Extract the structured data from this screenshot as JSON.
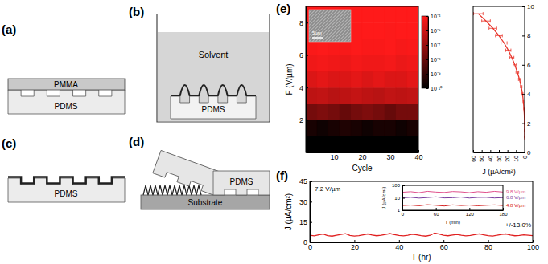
{
  "diagrams": {
    "a": {
      "letter": "(a)",
      "labels": [
        "PMMA",
        "PDMS"
      ]
    },
    "b": {
      "letter": "(b)",
      "labels": [
        "Solvent",
        "PDMS"
      ]
    },
    "c": {
      "letter": "(c)",
      "labels": [
        "PDMS"
      ]
    },
    "d": {
      "letter": "(d)",
      "labels": [
        "PDMS",
        "Substrate"
      ]
    }
  },
  "panel_labels": {
    "e": "(e)",
    "f": "(f)"
  },
  "chart_data": [
    {
      "type": "heatmap",
      "x_label": "Cycle",
      "y_label": "F (V/µm)",
      "x_bins": [
        0,
        4,
        8,
        12,
        16,
        20,
        24,
        28,
        32,
        36,
        40
      ],
      "y_bins": [
        0,
        1,
        2,
        3,
        4,
        5,
        6,
        7,
        8,
        9
      ],
      "cells": [
        [
          1e-10,
          1e-10,
          1e-10,
          1e-10,
          1e-10,
          1e-10,
          1e-10,
          1e-10,
          1e-10,
          1e-10
        ],
        [
          3e-10,
          2e-10,
          3e-10,
          4e-10,
          3e-10,
          2e-10,
          3e-10,
          3e-10,
          2e-10,
          3e-10
        ],
        [
          2e-08,
          3e-08,
          2e-08,
          1e-08,
          2e-08,
          3e-08,
          2e-08,
          1e-08,
          2e-08,
          2e-08
        ],
        [
          5e-07,
          6e-07,
          4e-07,
          5e-07,
          7e-07,
          5e-07,
          4e-07,
          6e-07,
          5e-07,
          6e-07
        ],
        [
          2e-06,
          3e-06,
          2e-06,
          2e-06,
          3e-06,
          2e-06,
          3e-06,
          2e-06,
          2e-06,
          3e-06
        ],
        [
          5e-06,
          6e-06,
          5e-06,
          4e-06,
          6e-06,
          5e-06,
          5e-06,
          6e-06,
          4e-06,
          5e-06
        ],
        [
          8e-06,
          9e-06,
          8e-06,
          7e-06,
          9e-06,
          8e-06,
          8e-06,
          9e-06,
          7e-06,
          8e-06
        ],
        [
          1e-05,
          9e-06,
          1e-05,
          1e-05,
          9e-06,
          1e-05,
          1e-05,
          9e-06,
          1e-05,
          1e-05
        ],
        [
          1e-05,
          1e-05,
          1e-05,
          1e-05,
          1e-05,
          1e-05,
          1e-05,
          1e-05,
          1e-05,
          1e-05
        ]
      ],
      "xlim": [
        0,
        40
      ],
      "ylim": [
        0,
        9
      ],
      "xticks": [
        10,
        20,
        30,
        40
      ],
      "yticks": [
        2,
        4,
        6,
        8
      ],
      "colorbar": {
        "range": [
          1e-10,
          1e-05
        ],
        "log": true,
        "ticks": [
          {
            "value": 1e-10,
            "label": "10⁻¹⁰"
          },
          {
            "value": 1e-09,
            "label": "10⁻⁹"
          },
          {
            "value": 1e-08,
            "label": "10⁻⁸"
          },
          {
            "value": 1e-07,
            "label": "10⁻⁷"
          },
          {
            "value": 1e-06,
            "label": "10⁻⁶"
          },
          {
            "value": 1e-05,
            "label": "10⁻⁵"
          }
        ]
      },
      "annotations": [
        "5µm"
      ]
    },
    {
      "type": "line",
      "x_label": "J (µA/cm²)",
      "x": [
        0,
        0,
        0.1,
        0.3,
        0.8,
        1.5,
        2.5,
        4,
        6,
        8.5,
        11.5,
        15,
        19,
        24,
        30,
        37,
        45,
        54
      ],
      "values": [
        1,
        1.5,
        2,
        2.5,
        3,
        3.5,
        4,
        4.5,
        5,
        5.5,
        6,
        6.5,
        7,
        7.5,
        8,
        8.5,
        9,
        9.5
      ],
      "x_errors": [
        0,
        0,
        0.05,
        0.1,
        0.2,
        0.4,
        0.6,
        0.9,
        1.2,
        1.6,
        2,
        2.5,
        3,
        3.5,
        4,
        4.5,
        5,
        5.5
      ],
      "color": "#e8342a",
      "xlim": [
        60,
        0
      ],
      "ylim": [
        0,
        10
      ],
      "xticks": [
        60,
        50,
        40,
        30,
        20,
        10,
        0
      ],
      "yticks": [
        0,
        2,
        4,
        6,
        8,
        10
      ]
    },
    {
      "type": "line",
      "x_label": "T (hr)",
      "y_label": "J (µA/cm²)",
      "x": [
        0,
        2,
        4,
        6,
        8,
        10,
        12,
        14,
        16,
        18,
        20,
        22,
        24,
        26,
        28,
        30,
        32,
        34,
        36,
        38,
        40,
        42,
        44,
        46,
        48,
        50,
        52,
        54,
        56,
        58,
        60,
        62,
        64,
        66,
        68,
        70,
        72,
        74,
        76,
        78,
        80,
        82,
        84,
        86,
        88,
        90,
        92,
        94,
        96,
        98,
        100
      ],
      "series": [
        {
          "name": "7.2 V/µm",
          "color": "#e02020",
          "values": [
            5.2,
            4.8,
            5.5,
            6.1,
            5.0,
            4.6,
            5.3,
            5.9,
            6.4,
            5.1,
            4.7,
            5.0,
            5.6,
            6.2,
            5.4,
            4.9,
            5.2,
            5.8,
            6.5,
            5.7,
            5.1,
            4.8,
            5.3,
            6.0,
            5.5,
            5.0,
            4.6,
            5.2,
            6.8,
            6.1,
            5.3,
            4.9,
            5.4,
            5.9,
            5.2,
            4.8,
            5.1,
            5.7,
            6.3,
            5.5,
            5.0,
            4.7,
            5.2,
            5.8,
            6.2,
            5.4,
            4.9,
            5.1,
            5.6,
            5.3,
            5.0
          ]
        }
      ],
      "annotations": [
        "+/-13.0%"
      ],
      "xlim": [
        0,
        100
      ],
      "ylim": [
        0,
        45
      ],
      "xticks": [
        0,
        20,
        40,
        60,
        80,
        100
      ],
      "yticks": [
        0,
        15,
        30,
        45
      ]
    },
    {
      "type": "line",
      "log": "y",
      "x_label": "T (min)",
      "y_label": "J (µA/cm²)",
      "x": [
        0,
        15,
        30,
        45,
        60,
        75,
        90,
        105,
        120,
        135,
        150,
        165,
        180
      ],
      "series": [
        {
          "name": "9.8 V/µm",
          "color": "#e0508c",
          "values": [
            28,
            31,
            26,
            33,
            29,
            27,
            32,
            30,
            26,
            31,
            28,
            33,
            29
          ]
        },
        {
          "name": "6.8 V/µm",
          "color": "#7a3fa0",
          "values": [
            10,
            11,
            9.5,
            10.5,
            12,
            9.8,
            10.2,
            11.5,
            9.6,
            10.8,
            11,
            9.7,
            10.4
          ]
        },
        {
          "name": "4.8 V/µm",
          "color": "#d42020",
          "values": [
            2.4,
            2.6,
            2.3,
            2.8,
            2.5,
            2.2,
            2.7,
            2.4,
            2.6,
            2.3,
            2.5,
            2.7,
            2.4
          ]
        }
      ],
      "xlim": [
        0,
        180
      ],
      "ylim": [
        1,
        100
      ],
      "xticks": [
        0,
        60,
        120,
        180
      ],
      "yticks": [
        1,
        10,
        100
      ]
    }
  ]
}
